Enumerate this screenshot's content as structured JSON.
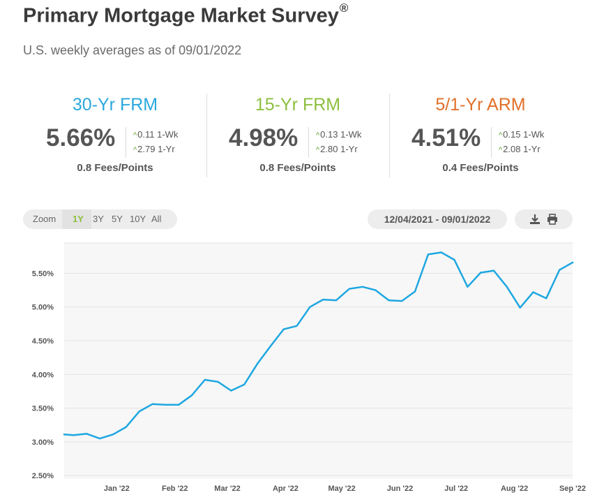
{
  "header": {
    "title": "Primary Mortgage Market Survey",
    "title_mark": "®",
    "subtitle": "U.S. weekly averages as of 09/01/2022"
  },
  "rates": [
    {
      "name": "30-Yr FRM",
      "value": "5.66%",
      "wk_change": "0.11 1-Wk",
      "yr_change": "2.79 1-Yr",
      "fees": "0.8 Fees/Points",
      "color": "#2aa8dc"
    },
    {
      "name": "15-Yr FRM",
      "value": "4.98%",
      "wk_change": "0.13 1-Wk",
      "yr_change": "2.80 1-Yr",
      "fees": "0.8 Fees/Points",
      "color": "#8cbf3f"
    },
    {
      "name": "5/1-Yr ARM",
      "value": "4.51%",
      "wk_change": "0.15 1-Wk",
      "yr_change": "2.08 1-Yr",
      "fees": "0.4 Fees/Points",
      "color": "#e0702a"
    }
  ],
  "toolbar": {
    "zoom_label": "Zoom",
    "zoom_options": [
      "1Y",
      "3Y",
      "5Y",
      "10Y",
      "All"
    ],
    "zoom_selected": "1Y",
    "date_range": "12/04/2021 - 09/01/2022",
    "download_icon": "download-icon",
    "print_icon": "printer-icon"
  },
  "chart_data": {
    "type": "line",
    "y_ticks": [
      "5.50%",
      "5.00%",
      "4.50%",
      "4.00%",
      "3.50%",
      "3.00%",
      "2.50%"
    ],
    "y_tick_values": [
      5.5,
      5.0,
      4.5,
      4.0,
      3.5,
      3.0,
      2.5
    ],
    "ylim": [
      2.45,
      5.95
    ],
    "x_ticks": [
      "Jan '22",
      "Feb '22",
      "Mar '22",
      "Apr '22",
      "May '22",
      "Jun '22",
      "Jul '22",
      "Aug '22",
      "Sep '22"
    ],
    "x_tick_dates": [
      "2022-01-01",
      "2022-02-01",
      "2022-03-01",
      "2022-04-01",
      "2022-05-01",
      "2022-06-01",
      "2022-07-01",
      "2022-08-01",
      "2022-09-01"
    ],
    "xlim": [
      "2021-12-04",
      "2022-09-01"
    ],
    "grid": true,
    "series": [
      {
        "color": "#1ea7e1",
        "x": [
          "2021-12-04",
          "2021-12-09",
          "2021-12-16",
          "2021-12-23",
          "2021-12-30",
          "2022-01-06",
          "2022-01-13",
          "2022-01-20",
          "2022-01-27",
          "2022-02-03",
          "2022-02-10",
          "2022-02-17",
          "2022-02-24",
          "2022-03-03",
          "2022-03-10",
          "2022-03-17",
          "2022-03-24",
          "2022-03-31",
          "2022-04-07",
          "2022-04-14",
          "2022-04-21",
          "2022-04-28",
          "2022-05-05",
          "2022-05-12",
          "2022-05-19",
          "2022-05-26",
          "2022-06-02",
          "2022-06-09",
          "2022-06-16",
          "2022-06-23",
          "2022-06-30",
          "2022-07-07",
          "2022-07-14",
          "2022-07-21",
          "2022-07-28",
          "2022-08-04",
          "2022-08-11",
          "2022-08-18",
          "2022-08-25",
          "2022-09-01"
        ],
        "values": [
          3.11,
          3.1,
          3.12,
          3.05,
          3.11,
          3.22,
          3.45,
          3.56,
          3.55,
          3.55,
          3.69,
          3.92,
          3.89,
          3.76,
          3.85,
          4.16,
          4.42,
          4.67,
          4.72,
          5.0,
          5.11,
          5.1,
          5.27,
          5.3,
          5.25,
          5.1,
          5.09,
          5.23,
          5.78,
          5.81,
          5.7,
          5.3,
          5.51,
          5.54,
          5.3,
          4.99,
          5.22,
          5.13,
          5.55,
          5.66
        ]
      }
    ]
  }
}
